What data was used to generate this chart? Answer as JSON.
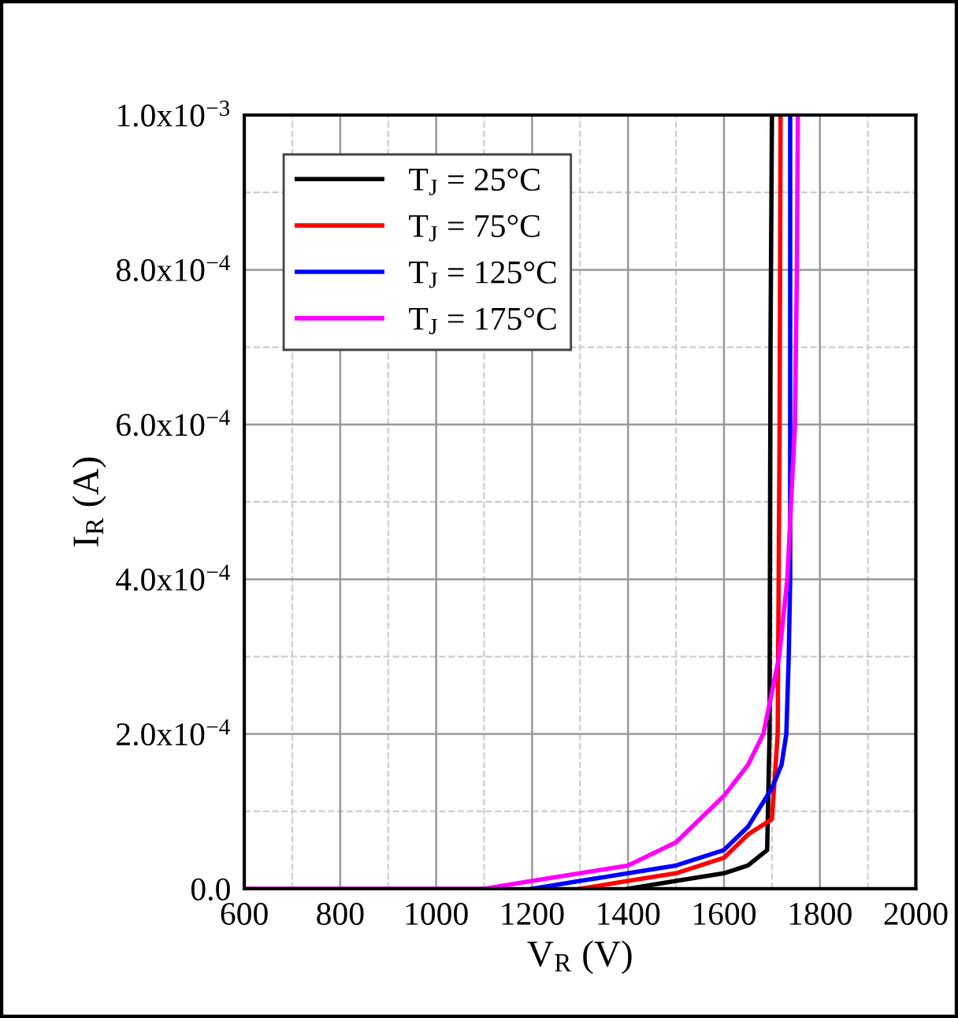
{
  "chart_data": {
    "type": "line",
    "xlabel": "V$_{R}$ (V)",
    "ylabel": "I$_{R}$ (A)",
    "xlim": [
      600,
      2000
    ],
    "xticks": [
      600,
      800,
      1000,
      1200,
      1400,
      1600,
      1800,
      2000
    ],
    "ylim": [
      0,
      0.001
    ],
    "yticks": [
      {
        "value": 0,
        "label": "0.0"
      },
      {
        "value": 0.0002,
        "label": "2.0x10$^{−4}$"
      },
      {
        "value": 0.0004,
        "label": "4.0x10$^{−4}$"
      },
      {
        "value": 0.0006,
        "label": "6.0x10$^{−4}$"
      },
      {
        "value": 0.0008,
        "label": "8.0x10$^{−4}$"
      },
      {
        "value": 0.001,
        "label": "1.0x10$^{−3}$"
      }
    ],
    "grid": true,
    "legend": "top left",
    "marker": "none",
    "line_style": "solid",
    "series": [
      {
        "name": "T$_{J}$ = 25°C",
        "color": "#000000",
        "x": [
          1400,
          1500,
          1600,
          1650,
          1690,
          1695,
          1697,
          1700
        ],
        "values": [
          0,
          1e-05,
          2e-05,
          3e-05,
          5e-05,
          0.0002,
          0.0007,
          0.001
        ]
      },
      {
        "name": "T$_{J}$ = 75°C",
        "color": "#ff0000",
        "x": [
          1300,
          1400,
          1500,
          1600,
          1650,
          1700,
          1712,
          1716,
          1718
        ],
        "values": [
          0,
          1e-05,
          2e-05,
          4e-05,
          7e-05,
          9e-05,
          0.0002,
          0.0006,
          0.001
        ]
      },
      {
        "name": "T$_{J}$ = 125°C",
        "color": "#0000ff",
        "x": [
          1200,
          1300,
          1400,
          1500,
          1600,
          1650,
          1700,
          1720,
          1730,
          1735,
          1738,
          1738
        ],
        "values": [
          0,
          1e-05,
          2e-05,
          3e-05,
          5e-05,
          8e-05,
          0.00013,
          0.00016,
          0.0002,
          0.0003,
          0.0004,
          0.001
        ]
      },
      {
        "name": "T$_{J}$ = 175°C",
        "color": "#ff00ff",
        "x": [
          600,
          1100,
          1200,
          1300,
          1400,
          1500,
          1600,
          1650,
          1682,
          1715,
          1732,
          1748,
          1752,
          1754
        ],
        "values": [
          0,
          0,
          1e-05,
          2e-05,
          3e-05,
          6e-05,
          0.00012,
          0.00016,
          0.0002,
          0.0003,
          0.0004,
          0.0006,
          0.0008,
          0.001
        ]
      }
    ]
  }
}
